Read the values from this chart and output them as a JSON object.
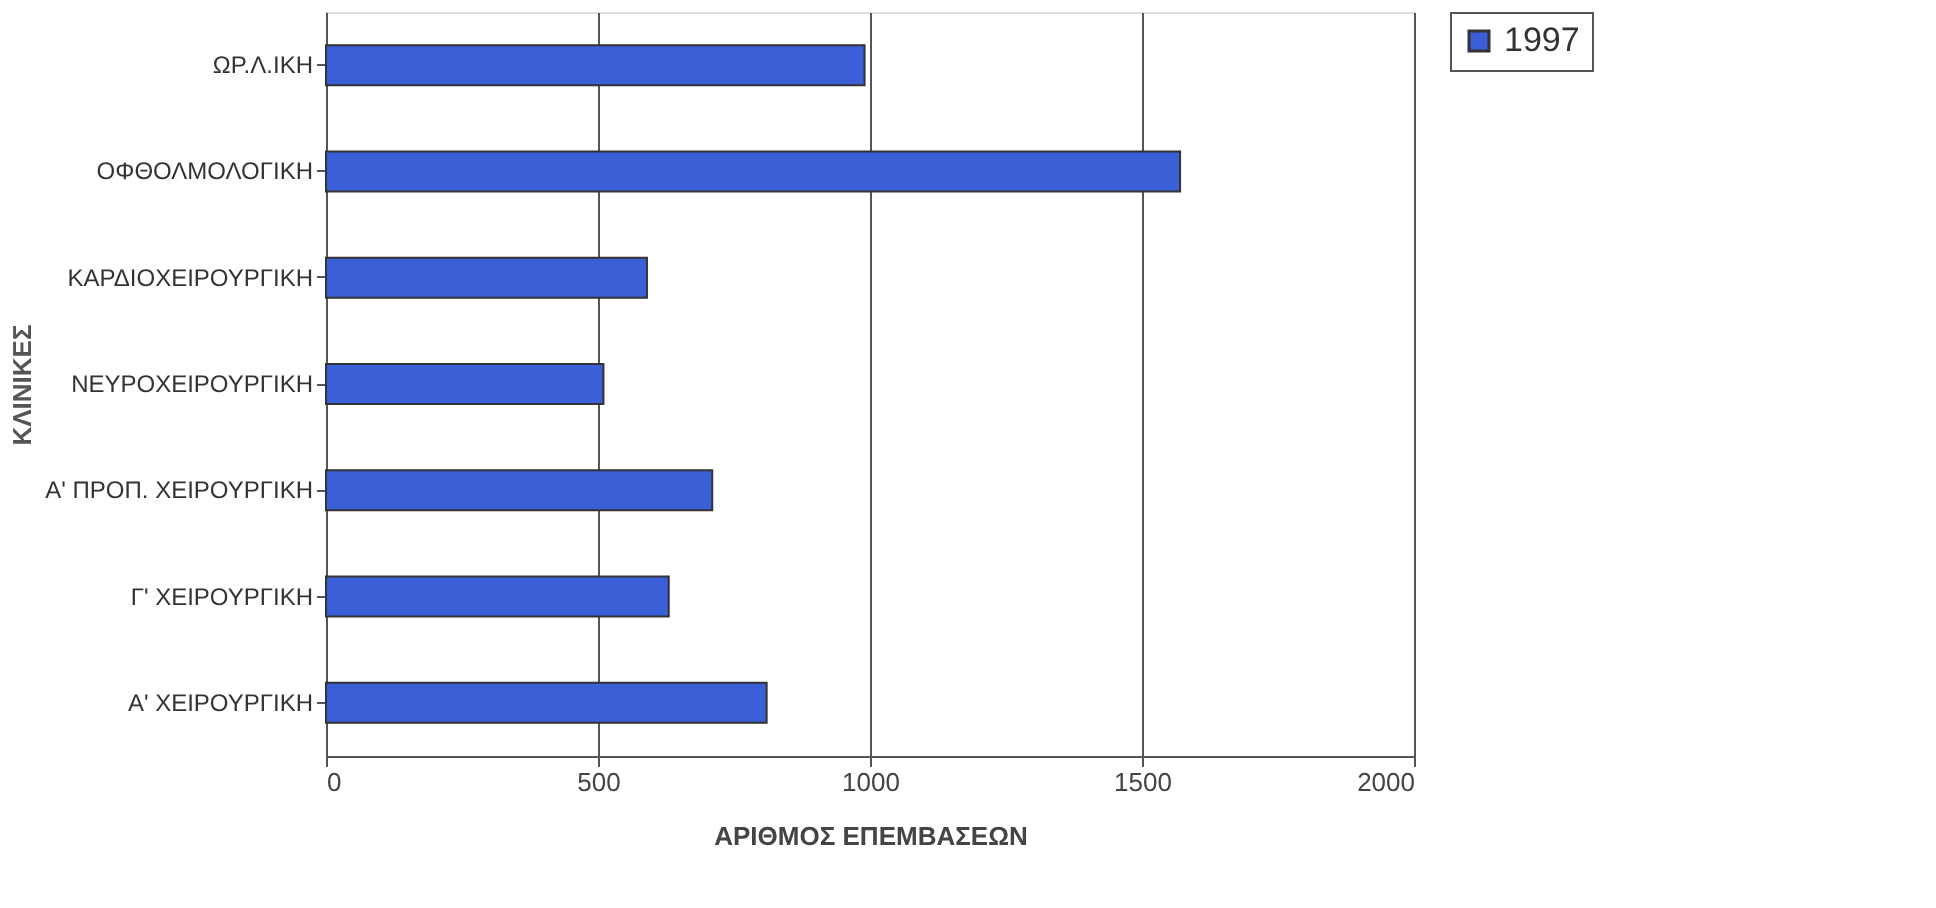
{
  "chart_data": {
    "type": "bar",
    "orientation": "horizontal",
    "xlabel": "ΑΡΙΘΜΟΣ ΕΠΕΜΒΑΣΕΩΝ",
    "ylabel": "ΚΛΙΝΙΚΕΣ",
    "categories": [
      "ΩΡ.Λ.ΙΚΗ",
      "ΟΦΘΟΛΜΟΛΟΓΙΚΗ",
      "ΚΑΡΔΙΟΧΕΙΡΟΥΡΓΙΚΗ",
      "ΝΕΥΡΟΧΕΙΡΟΥΡΓΙΚΗ",
      "Α' ΠΡΟΠ. ΧΕΙΡΟΥΡΓΙΚΗ",
      "Γ' ΧΕΙΡΟΥΡΓΙΚΗ",
      "Α' ΧΕΙΡΟΥΡΓΙΚΗ"
    ],
    "series": [
      {
        "name": "1997",
        "color": "#3b5fd6",
        "values": [
          990,
          1570,
          590,
          510,
          710,
          630,
          810
        ]
      }
    ],
    "xlim": [
      0,
      2000
    ],
    "xticks": [
      0,
      500,
      1000,
      1500,
      2000
    ],
    "grid": "x",
    "legend": "top right"
  }
}
